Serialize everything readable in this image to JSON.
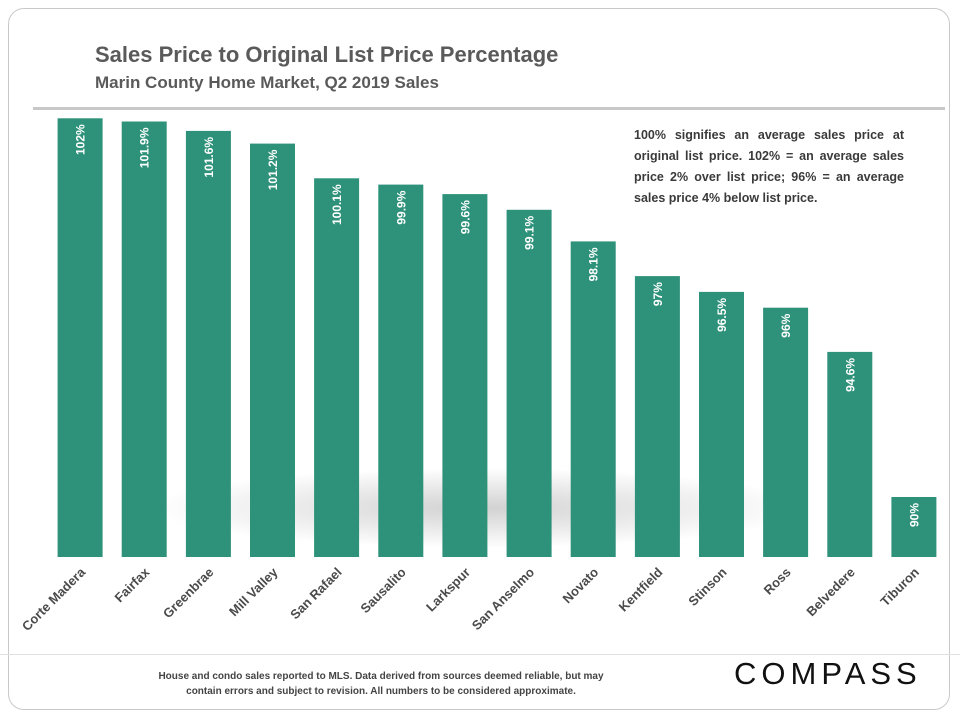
{
  "header": {
    "title": "Sales Price to Original List Price Percentage",
    "subtitle": "Marin County Home Market, Q2 2019 Sales"
  },
  "note": "100% signifies an average sales price at original list price. 102% = an average sales price 2% over list price; 96% = an average sales price 4% below list price.",
  "footer": {
    "disclaimer": "House and condo sales reported to MLS. Data derived from sources deemed reliable, but may contain errors and subject to revision. All numbers to be considered approximate.",
    "logo": "COMPASS"
  },
  "colors": {
    "bar": "#2e917a",
    "text": "#5a5a5a",
    "label": "#ffffff"
  },
  "chart_data": {
    "type": "bar",
    "title": "Sales Price to Original List Price Percentage",
    "subtitle": "Marin County Home Market, Q2 2019 Sales",
    "xlabel": "",
    "ylabel": "",
    "grid": false,
    "categories": [
      "Corte Madera",
      "Fairfax",
      "Greenbrae",
      "Mill Valley",
      "San Rafael",
      "Sausalito",
      "Larkspur",
      "San Anselmo",
      "Novato",
      "Kentfield",
      "Stinson",
      "Ross",
      "Belvedere",
      "Tiburon"
    ],
    "values": [
      102,
      101.9,
      101.6,
      101.2,
      100.1,
      99.9,
      99.6,
      99.1,
      98.1,
      97,
      96.5,
      96,
      94.6,
      90
    ],
    "data_labels": [
      "102%",
      "101.9%",
      "101.6%",
      "101.2%",
      "100.1%",
      "99.9%",
      "99.6%",
      "99.1%",
      "98.1%",
      "97%",
      "96.5%",
      "96%",
      "94.6%",
      "90%"
    ],
    "unit": "%",
    "ylim": [
      88.1,
      102.2
    ]
  }
}
